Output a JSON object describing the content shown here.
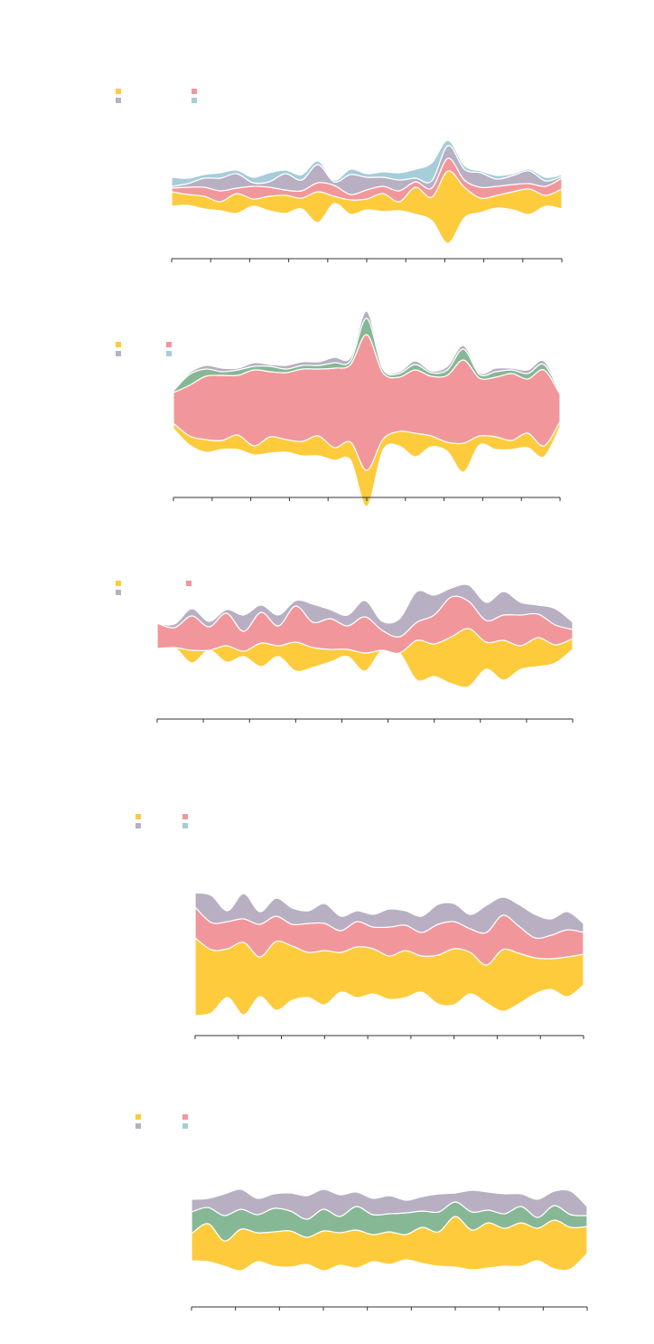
{
  "colors": {
    "yellow": "#FDCB3C",
    "pink": "#F1979C",
    "purple": "#B8AFC2",
    "blue": "#A6CDD9",
    "green": "#86B896",
    "axis": "#333333"
  },
  "chart_data": [
    {
      "type": "area",
      "subtype": "streamgraph",
      "legend": [
        {
          "color_key": "yellow"
        },
        {
          "color_key": "purple"
        },
        {
          "color_key": "pink"
        },
        {
          "color_key": "blue"
        }
      ],
      "x_ticks": 10,
      "series": [
        {
          "color_key": "yellow",
          "values": [
            16,
            12,
            14,
            10,
            22,
            8,
            16,
            20,
            12,
            34,
            8,
            16,
            12,
            20,
            10,
            30,
            26,
            80,
            34,
            16,
            14,
            20,
            28,
            12,
            22
          ]
        },
        {
          "color_key": "pink",
          "values": [
            4,
            8,
            10,
            12,
            6,
            14,
            10,
            6,
            8,
            10,
            12,
            6,
            10,
            8,
            12,
            6,
            10,
            14,
            8,
            12,
            10,
            8,
            6,
            10,
            12
          ]
        },
        {
          "color_key": "purple",
          "values": [
            2,
            4,
            10,
            14,
            16,
            4,
            6,
            18,
            12,
            20,
            4,
            22,
            14,
            10,
            12,
            4,
            8,
            14,
            12,
            16,
            8,
            10,
            14,
            6,
            2
          ]
        },
        {
          "color_key": "blue",
          "values": [
            10,
            6,
            4,
            6,
            4,
            6,
            10,
            4,
            6,
            4,
            2,
            6,
            4,
            6,
            8,
            10,
            20,
            6,
            4,
            2,
            4,
            2,
            2,
            4,
            2
          ]
        }
      ]
    },
    {
      "type": "area",
      "subtype": "streamgraph",
      "legend": [
        {
          "color_key": "yellow"
        },
        {
          "color_key": "purple"
        },
        {
          "color_key": "pink"
        },
        {
          "color_key": "blue"
        }
      ],
      "x_ticks": 10,
      "series": [
        {
          "color_key": "yellow",
          "values": [
            6,
            10,
            14,
            10,
            16,
            10,
            18,
            14,
            16,
            22,
            14,
            20,
            40,
            12,
            16,
            26,
            12,
            10,
            32,
            10,
            14,
            10,
            16,
            12,
            6
          ]
        },
        {
          "color_key": "pink",
          "values": [
            34,
            56,
            70,
            72,
            66,
            84,
            72,
            74,
            80,
            74,
            88,
            86,
            150,
            74,
            60,
            70,
            66,
            74,
            92,
            64,
            66,
            74,
            60,
            84,
            30
          ]
        },
        {
          "color_key": "green",
          "values": [
            2,
            12,
            8,
            4,
            6,
            4,
            6,
            4,
            4,
            4,
            6,
            4,
            18,
            4,
            4,
            6,
            4,
            6,
            12,
            4,
            6,
            4,
            6,
            6,
            2
          ]
        },
        {
          "color_key": "purple",
          "values": [
            2,
            2,
            4,
            4,
            2,
            4,
            2,
            4,
            4,
            4,
            6,
            4,
            8,
            2,
            2,
            4,
            2,
            4,
            4,
            2,
            4,
            2,
            4,
            4,
            2
          ]
        }
      ]
    },
    {
      "type": "area",
      "subtype": "streamgraph",
      "legend": [
        {
          "color_key": "yellow"
        },
        {
          "color_key": "purple"
        },
        {
          "color_key": "pink"
        }
      ],
      "x_ticks": 9,
      "series": [
        {
          "color_key": "yellow",
          "values": [
            0,
            0,
            14,
            0,
            18,
            6,
            26,
            12,
            32,
            22,
            14,
            8,
            20,
            0,
            0,
            44,
            36,
            52,
            64,
            30,
            44,
            26,
            32,
            20,
            12
          ]
        },
        {
          "color_key": "pink",
          "values": [
            28,
            22,
            38,
            26,
            36,
            22,
            34,
            22,
            40,
            28,
            34,
            26,
            40,
            22,
            18,
            20,
            32,
            44,
            30,
            24,
            28,
            34,
            26,
            22,
            10
          ]
        },
        {
          "color_key": "purple",
          "values": [
            0,
            4,
            8,
            6,
            4,
            18,
            8,
            12,
            6,
            20,
            10,
            12,
            18,
            10,
            20,
            34,
            22,
            10,
            18,
            20,
            26,
            14,
            10,
            18,
            8
          ]
        }
      ]
    },
    {
      "type": "area",
      "subtype": "streamgraph",
      "legend": [
        {
          "color_key": "yellow"
        },
        {
          "color_key": "purple"
        },
        {
          "color_key": "pink"
        },
        {
          "color_key": "blue"
        }
      ],
      "x_ticks": 9,
      "series": [
        {
          "color_key": "yellow",
          "values": [
            86,
            70,
            54,
            80,
            44,
            76,
            60,
            50,
            60,
            44,
            56,
            50,
            48,
            52,
            40,
            54,
            62,
            46,
            42,
            68,
            56,
            40,
            34,
            44,
            34
          ]
        },
        {
          "color_key": "pink",
          "values": [
            34,
            30,
            30,
            26,
            36,
            28,
            24,
            32,
            30,
            24,
            28,
            24,
            32,
            28,
            26,
            34,
            30,
            26,
            36,
            38,
            30,
            22,
            26,
            30,
            24
          ]
        },
        {
          "color_key": "purple",
          "values": [
            16,
            30,
            12,
            28,
            14,
            20,
            18,
            14,
            22,
            16,
            12,
            14,
            20,
            16,
            18,
            22,
            20,
            16,
            30,
            20,
            24,
            26,
            18,
            20,
            10
          ]
        }
      ]
    },
    {
      "type": "area",
      "subtype": "streamgraph",
      "legend": [
        {
          "color_key": "yellow"
        },
        {
          "color_key": "purple"
        },
        {
          "color_key": "pink"
        },
        {
          "color_key": "blue"
        }
      ],
      "x_ticks": 9,
      "series": [
        {
          "color_key": "yellow",
          "values": [
            30,
            42,
            28,
            46,
            32,
            38,
            40,
            30,
            44,
            36,
            42,
            30,
            36,
            28,
            40,
            38,
            56,
            44,
            50,
            42,
            48,
            36,
            54,
            46,
            30
          ]
        },
        {
          "color_key": "green",
          "values": [
            24,
            18,
            28,
            22,
            20,
            26,
            22,
            20,
            24,
            18,
            26,
            22,
            20,
            24,
            18,
            22,
            16,
            20,
            14,
            16,
            18,
            12,
            16,
            14,
            12
          ]
        },
        {
          "color_key": "purple",
          "values": [
            14,
            10,
            24,
            22,
            18,
            16,
            20,
            26,
            22,
            24,
            16,
            18,
            20,
            14,
            16,
            20,
            10,
            24,
            20,
            22,
            14,
            20,
            16,
            26,
            10
          ]
        }
      ]
    }
  ]
}
